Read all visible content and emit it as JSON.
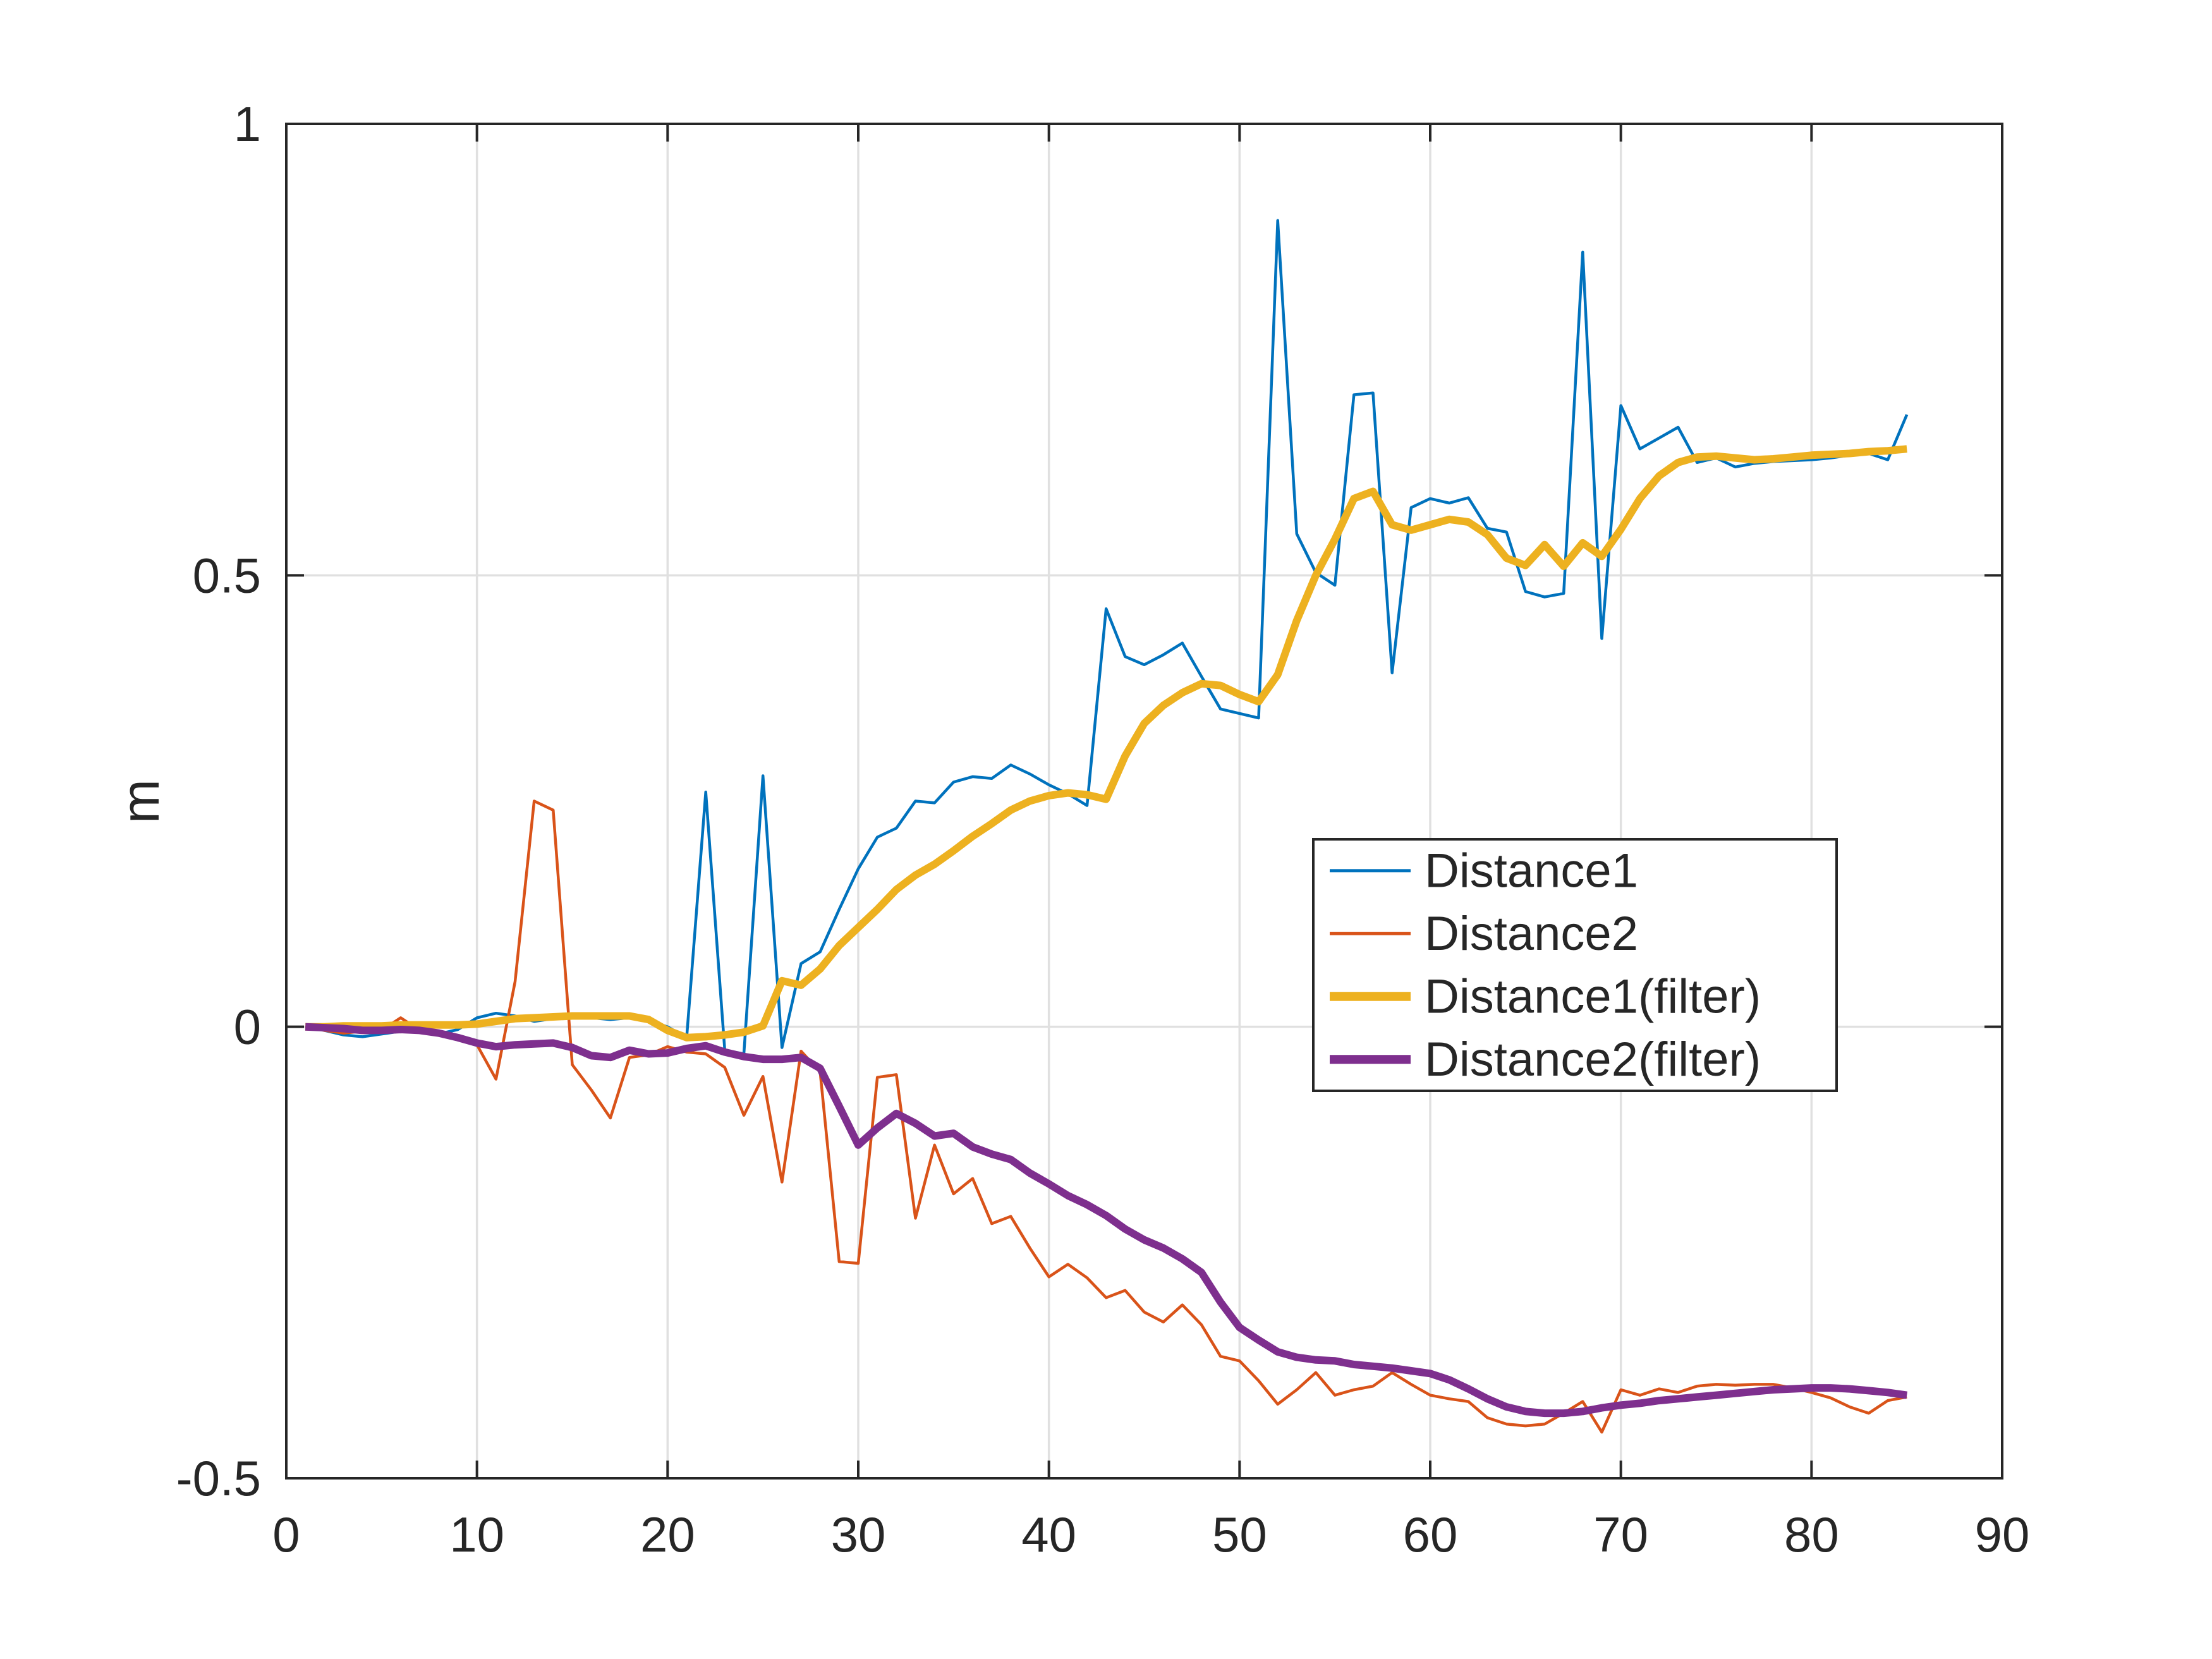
{
  "figure": {
    "background_color": "#ffffff",
    "axis_color": "#262626",
    "grid_color": "#e0e0e0",
    "tick_label_color": "#262626"
  },
  "chart_data": {
    "type": "line",
    "title": "",
    "xlabel": "",
    "ylabel": "m",
    "xlim": [
      0,
      90
    ],
    "ylim": [
      -0.5,
      1
    ],
    "xticks": [
      0,
      10,
      20,
      30,
      40,
      50,
      60,
      70,
      80,
      90
    ],
    "xtick_labels": [
      "0",
      "10",
      "20",
      "30",
      "40",
      "50",
      "60",
      "70",
      "80",
      "90"
    ],
    "yticks": [
      -0.5,
      0,
      0.5,
      1
    ],
    "ytick_labels": [
      "-0.5",
      "0",
      "0.5",
      "1"
    ],
    "grid": true,
    "legend": {
      "position": "northeast-inside",
      "entries": [
        "Distance1",
        "Distance2",
        "Distance1(filter)",
        "Distance2(filter)"
      ]
    },
    "x": [
      1,
      2,
      3,
      4,
      5,
      6,
      7,
      8,
      9,
      10,
      11,
      12,
      13,
      14,
      15,
      16,
      17,
      18,
      19,
      20,
      21,
      22,
      23,
      24,
      25,
      26,
      27,
      28,
      29,
      30,
      31,
      32,
      33,
      34,
      35,
      36,
      37,
      38,
      39,
      40,
      41,
      42,
      43,
      44,
      45,
      46,
      47,
      48,
      49,
      50,
      51,
      52,
      53,
      54,
      55,
      56,
      57,
      58,
      59,
      60,
      61,
      62,
      63,
      64,
      65,
      66,
      67,
      68,
      69,
      70,
      71,
      72,
      73,
      74,
      75,
      76,
      77,
      78,
      79,
      80,
      81,
      82,
      83,
      84,
      85
    ],
    "series": [
      {
        "name": "Distance1",
        "color": "#0072BD",
        "line_style": "thin",
        "values": [
          0.0,
          -0.004,
          -0.009,
          -0.011,
          -0.008,
          -0.005,
          -0.006,
          -0.008,
          -0.003,
          0.01,
          0.015,
          0.012,
          0.006,
          0.009,
          0.01,
          0.01,
          0.008,
          0.01,
          0.007,
          0.0,
          -0.012,
          0.26,
          -0.026,
          -0.03,
          0.278,
          -0.023,
          0.07,
          0.083,
          0.13,
          0.175,
          0.21,
          0.22,
          0.25,
          0.248,
          0.271,
          0.277,
          0.275,
          0.29,
          0.28,
          0.268,
          0.258,
          0.245,
          0.463,
          0.41,
          0.401,
          0.412,
          0.425,
          0.388,
          0.352,
          0.347,
          0.342,
          0.893,
          0.546,
          0.503,
          0.489,
          0.7,
          0.702,
          0.392,
          0.575,
          0.585,
          0.58,
          0.586,
          0.552,
          0.548,
          0.482,
          0.476,
          0.48,
          0.858,
          0.43,
          0.688,
          0.64,
          0.652,
          0.664,
          0.625,
          0.63,
          0.62,
          0.624,
          0.626,
          0.627,
          0.628,
          0.63,
          0.633,
          0.635,
          0.628,
          0.678
        ]
      },
      {
        "name": "Distance2",
        "color": "#D95319",
        "line_style": "thin",
        "values": [
          0.0,
          -0.004,
          -0.007,
          -0.005,
          -0.004,
          0.01,
          -0.004,
          -0.009,
          -0.012,
          -0.02,
          -0.058,
          0.05,
          0.25,
          0.24,
          -0.042,
          -0.07,
          -0.101,
          -0.034,
          -0.031,
          -0.022,
          -0.028,
          -0.03,
          -0.045,
          -0.098,
          -0.055,
          -0.172,
          -0.027,
          -0.05,
          -0.26,
          -0.262,
          -0.056,
          -0.053,
          -0.212,
          -0.131,
          -0.185,
          -0.168,
          -0.218,
          -0.21,
          -0.245,
          -0.277,
          -0.263,
          -0.278,
          -0.3,
          -0.292,
          -0.316,
          -0.327,
          -0.308,
          -0.33,
          -0.365,
          -0.37,
          -0.392,
          -0.418,
          -0.402,
          -0.383,
          -0.408,
          -0.402,
          -0.398,
          -0.383,
          -0.396,
          -0.408,
          -0.412,
          -0.415,
          -0.433,
          -0.44,
          -0.442,
          -0.44,
          -0.428,
          -0.415,
          -0.449,
          -0.402,
          -0.408,
          -0.401,
          -0.405,
          -0.398,
          -0.396,
          -0.397,
          -0.396,
          -0.396,
          -0.4,
          -0.405,
          -0.411,
          -0.421,
          -0.428,
          -0.414,
          -0.41
        ]
      },
      {
        "name": "Distance1(filter)",
        "color": "#EDB120",
        "line_style": "thick",
        "values": [
          0.0,
          0.0,
          0.001,
          0.001,
          0.001,
          0.002,
          0.002,
          0.002,
          0.002,
          0.003,
          0.006,
          0.009,
          0.01,
          0.011,
          0.012,
          0.012,
          0.012,
          0.012,
          0.008,
          -0.004,
          -0.012,
          -0.011,
          -0.009,
          -0.006,
          0.001,
          0.051,
          0.046,
          0.064,
          0.09,
          0.11,
          0.13,
          0.152,
          0.168,
          0.18,
          0.195,
          0.211,
          0.225,
          0.24,
          0.25,
          0.256,
          0.259,
          0.257,
          0.252,
          0.3,
          0.336,
          0.356,
          0.37,
          0.38,
          0.378,
          0.368,
          0.36,
          0.39,
          0.45,
          0.5,
          0.54,
          0.585,
          0.593,
          0.556,
          0.55,
          0.556,
          0.562,
          0.559,
          0.545,
          0.519,
          0.511,
          0.534,
          0.51,
          0.536,
          0.521,
          0.551,
          0.585,
          0.61,
          0.625,
          0.631,
          0.632,
          0.63,
          0.628,
          0.629,
          0.631,
          0.633,
          0.634,
          0.635,
          0.637,
          0.638,
          0.64
        ]
      },
      {
        "name": "Distance2(filter)",
        "color": "#7E2F8E",
        "line_style": "thick",
        "values": [
          0.0,
          -0.001,
          -0.002,
          -0.004,
          -0.004,
          -0.003,
          -0.004,
          -0.007,
          -0.012,
          -0.018,
          -0.022,
          -0.02,
          -0.019,
          -0.018,
          -0.023,
          -0.032,
          -0.034,
          -0.026,
          -0.03,
          -0.029,
          -0.024,
          -0.021,
          -0.028,
          -0.033,
          -0.036,
          -0.036,
          -0.034,
          -0.046,
          -0.088,
          -0.131,
          -0.112,
          -0.096,
          -0.107,
          -0.121,
          -0.118,
          -0.133,
          -0.141,
          -0.147,
          -0.162,
          -0.174,
          -0.187,
          -0.197,
          -0.209,
          -0.224,
          -0.236,
          -0.245,
          -0.257,
          -0.272,
          -0.305,
          -0.333,
          -0.347,
          -0.36,
          -0.366,
          -0.369,
          -0.37,
          -0.374,
          -0.376,
          -0.378,
          -0.381,
          -0.384,
          -0.391,
          -0.401,
          -0.412,
          -0.421,
          -0.426,
          -0.428,
          -0.428,
          -0.426,
          -0.422,
          -0.419,
          -0.417,
          -0.414,
          -0.412,
          -0.41,
          -0.408,
          -0.406,
          -0.404,
          -0.402,
          -0.401,
          -0.4,
          -0.4,
          -0.401,
          -0.403,
          -0.405,
          -0.408
        ]
      }
    ]
  }
}
